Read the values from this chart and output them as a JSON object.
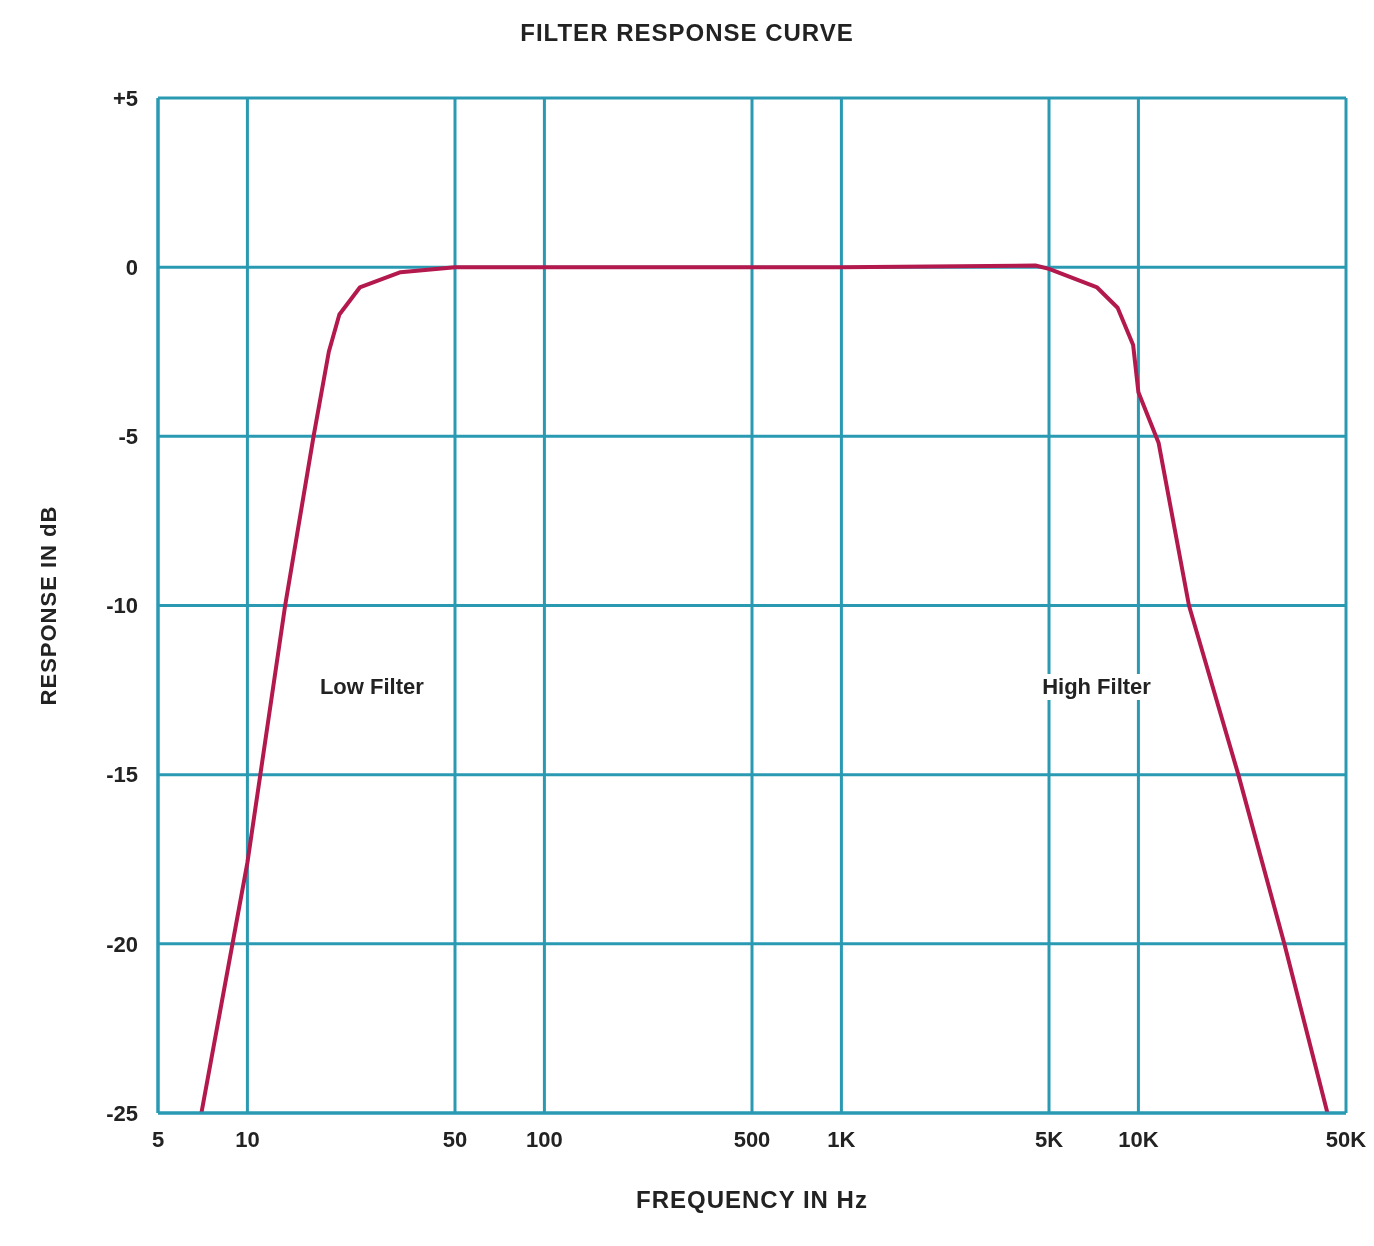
{
  "chart_data": {
    "type": "line",
    "title": "FILTER RESPONSE CURVE",
    "xlabel": "FREQUENCY IN Hz",
    "ylabel": "RESPONSE IN dB",
    "log": "x",
    "grid": true,
    "legend": false,
    "marker": "none",
    "line_style": "solid",
    "xlim": [
      5,
      50000
    ],
    "xticks": [
      5,
      10,
      50,
      100,
      500,
      {
        "value": 1000,
        "label": "1K"
      },
      {
        "value": 5000,
        "label": "5K"
      },
      {
        "value": 10000,
        "label": "10K"
      },
      {
        "value": 50000,
        "label": "50K"
      }
    ],
    "ylim": [
      -25,
      5
    ],
    "yticks": [
      {
        "value": 5,
        "label": "+5"
      },
      0,
      -5,
      -10,
      -15,
      -20,
      -25
    ],
    "x": [
      7,
      10,
      13.4,
      16.7,
      18.8,
      20.4,
      23.9,
      32.8,
      50,
      100,
      1000,
      4500,
      5000,
      7260,
      8510,
      9600,
      10000,
      11700,
      14800,
      21700,
      31000,
      43300
    ],
    "series": [
      {
        "color": "#b3194d",
        "values": [
          -25,
          -17.6,
          -10,
          -5,
          -2.5,
          -1.4,
          -0.6,
          -0.15,
          0,
          0,
          0,
          0.05,
          -0.05,
          -0.6,
          -1.2,
          -2.3,
          -3.7,
          -5.2,
          -10,
          -15,
          -20,
          -25
        ]
      }
    ],
    "annotations": [
      "Low Filter",
      "High Filter"
    ]
  }
}
